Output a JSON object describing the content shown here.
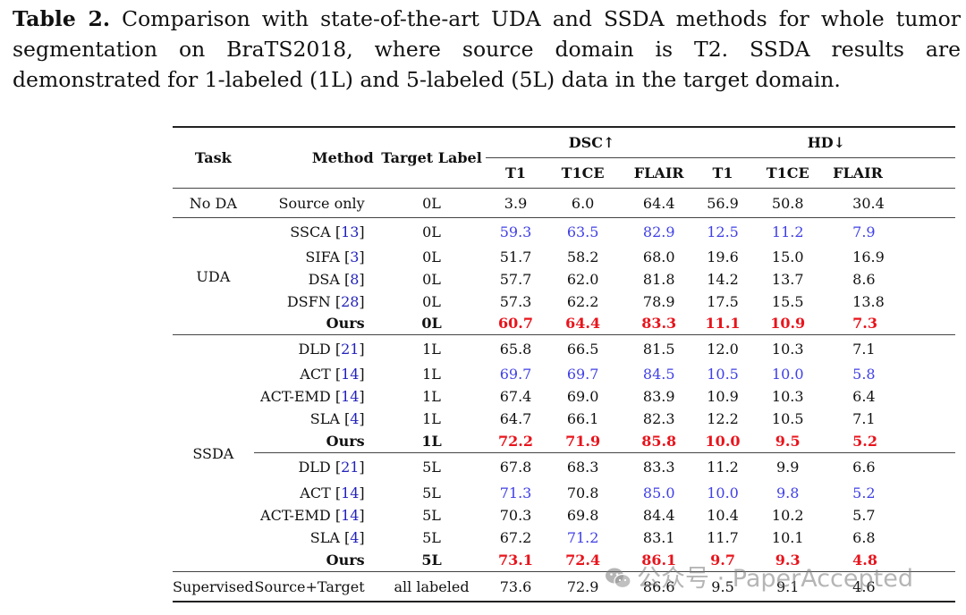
{
  "caption": {
    "label": "Table 2.",
    "text": "Comparison with state-of-the-art UDA and SSDA methods for whole tumor segmentation on BraTS2018, where source domain is T2. SSDA results are demonstrated for 1-labeled (1L) and 5-labeled (5L) data in the target domain."
  },
  "header": {
    "task": "Task",
    "method": "Method",
    "target_label": "Target Label",
    "dsc": "DSC↑",
    "hd": "HD↓",
    "cols": [
      "T1",
      "T1CE",
      "FLAIR",
      "T1",
      "T1CE",
      "FLAIR"
    ]
  },
  "groups": {
    "noda": "No DA",
    "uda": "UDA",
    "ssda": "SSDA",
    "supervised": "Supervised"
  },
  "rows": {
    "noda": {
      "method": "Source only",
      "ref": "",
      "label": "0L",
      "values": [
        "3.9",
        "6.0",
        "64.4",
        "56.9",
        "50.8",
        "30.4"
      ]
    },
    "uda": [
      {
        "method": "SSCA",
        "ref": "13",
        "label": "0L",
        "values": [
          "59.3",
          "63.5",
          "82.9",
          "12.5",
          "11.2",
          "7.9"
        ]
      },
      {
        "method": "SIFA",
        "ref": "3",
        "label": "0L",
        "values": [
          "51.7",
          "58.2",
          "68.0",
          "19.6",
          "15.0",
          "16.9"
        ]
      },
      {
        "method": "DSA",
        "ref": "8",
        "label": "0L",
        "values": [
          "57.7",
          "62.0",
          "81.8",
          "14.2",
          "13.7",
          "8.6"
        ]
      },
      {
        "method": "DSFN",
        "ref": "28",
        "label": "0L",
        "values": [
          "57.3",
          "62.2",
          "78.9",
          "17.5",
          "15.5",
          "13.8"
        ]
      },
      {
        "method": "Ours",
        "ref": "",
        "label": "0L",
        "values": [
          "60.7",
          "64.4",
          "83.3",
          "11.1",
          "10.9",
          "7.3"
        ]
      }
    ],
    "ssda1": [
      {
        "method": "DLD",
        "ref": "21",
        "label": "1L",
        "values": [
          "65.8",
          "66.5",
          "81.5",
          "12.0",
          "10.3",
          "7.1"
        ]
      },
      {
        "method": "ACT",
        "ref": "14",
        "label": "1L",
        "values": [
          "69.7",
          "69.7",
          "84.5",
          "10.5",
          "10.0",
          "5.8"
        ]
      },
      {
        "method": "ACT-EMD",
        "ref": "14",
        "label": "1L",
        "values": [
          "67.4",
          "69.0",
          "83.9",
          "10.9",
          "10.3",
          "6.4"
        ]
      },
      {
        "method": "SLA",
        "ref": "4",
        "label": "1L",
        "values": [
          "64.7",
          "66.1",
          "82.3",
          "12.2",
          "10.5",
          "7.1"
        ]
      },
      {
        "method": "Ours",
        "ref": "",
        "label": "1L",
        "values": [
          "72.2",
          "71.9",
          "85.8",
          "10.0",
          "9.5",
          "5.2"
        ]
      }
    ],
    "ssda5": [
      {
        "method": "DLD",
        "ref": "21",
        "label": "5L",
        "values": [
          "67.8",
          "68.3",
          "83.3",
          "11.2",
          "9.9",
          "6.6"
        ]
      },
      {
        "method": "ACT",
        "ref": "14",
        "label": "5L",
        "values": [
          "71.3",
          "70.8",
          "85.0",
          "10.0",
          "9.8",
          "5.2"
        ]
      },
      {
        "method": "ACT-EMD",
        "ref": "14",
        "label": "5L",
        "values": [
          "70.3",
          "69.8",
          "84.4",
          "10.4",
          "10.2",
          "5.7"
        ]
      },
      {
        "method": "SLA",
        "ref": "4",
        "label": "5L",
        "values": [
          "67.2",
          "71.2",
          "83.1",
          "11.7",
          "10.1",
          "6.8"
        ]
      },
      {
        "method": "Ours",
        "ref": "",
        "label": "5L",
        "values": [
          "73.1",
          "72.4",
          "86.1",
          "9.7",
          "9.3",
          "4.8"
        ]
      }
    ],
    "supervised": {
      "method": "Source+Target",
      "ref": "",
      "label": "all labeled",
      "values": [
        "73.6",
        "72.9",
        "86.6",
        "9.5",
        "9.1",
        "4.6"
      ]
    }
  },
  "watermark": "公众号 · PaperAccepted"
}
